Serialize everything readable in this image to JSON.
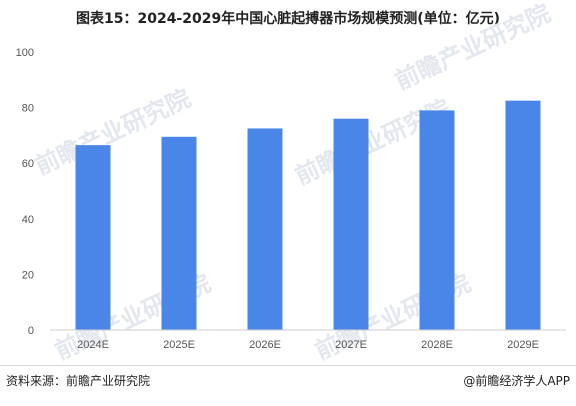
{
  "chart_data": {
    "type": "bar",
    "title": "图表15：2024-2029年中国心脏起搏器市场规模预测(单位：亿元)",
    "categories": [
      "2024E",
      "2025E",
      "2026E",
      "2027E",
      "2028E",
      "2029E"
    ],
    "values": [
      66.5,
      69.5,
      72.5,
      76,
      79,
      82.5
    ],
    "ylim": [
      0,
      100
    ],
    "yticks": [
      0,
      20,
      40,
      60,
      80,
      100
    ],
    "grid": false,
    "bar_color": "#4a86e8"
  },
  "watermark": "前瞻产业研究院",
  "footer": {
    "source": "资料来源：前瞻产业研究院",
    "brand": "@前瞻经济学人APP"
  }
}
